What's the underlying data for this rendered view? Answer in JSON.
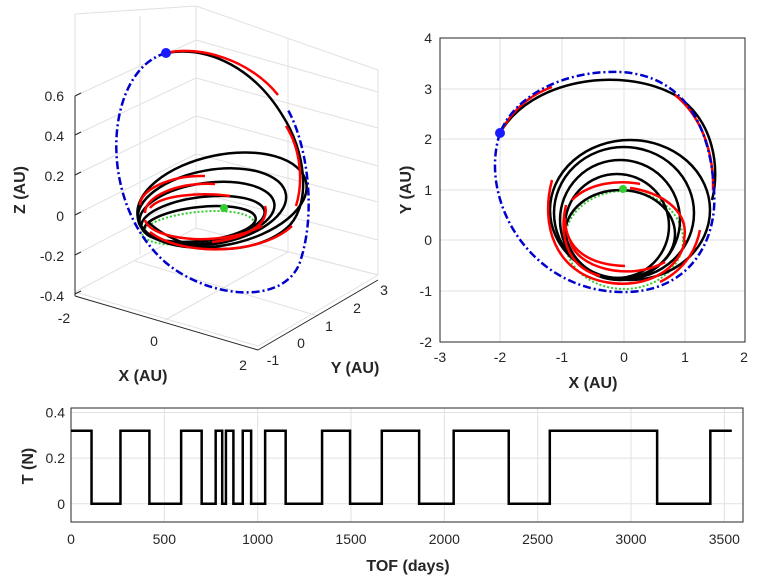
{
  "colors": {
    "transfer": "#000000",
    "thrust_arcs": "#ff0000",
    "departure_orbit": "#33cc33",
    "target_orbit": "#0000cc",
    "endpoint": "#1a1aff"
  },
  "chart_data": [
    {
      "type": "line3d",
      "name": "trajectory-3d",
      "xlabel": "X (AU)",
      "ylabel": "Y (AU)",
      "zlabel": "Z (AU)",
      "x_ticks": [
        "-2",
        "0",
        "2"
      ],
      "y_ticks": [
        "-1",
        "0",
        "1",
        "2",
        "3"
      ],
      "z_ticks": [
        "-0.4",
        "-0.2",
        "0",
        "0.2",
        "0.4",
        "0.6"
      ],
      "xlim": [
        -2,
        2
      ],
      "ylim": [
        -1,
        3.3
      ],
      "zlim": [
        -0.4,
        0.6
      ],
      "grid": true,
      "target_orbit": {
        "semi_major_axis_au": 2.25,
        "inclination_deg": 11,
        "style": "dash-dot"
      },
      "departure_orbit": {
        "radius_au": 1.0,
        "style": "dotted"
      },
      "endpoint": {
        "x": -2.0,
        "y": 2.1,
        "z": 0.58
      }
    },
    {
      "type": "line",
      "name": "trajectory-xy",
      "xlabel": "X (AU)",
      "ylabel": "Y (AU)",
      "x_ticks": [
        "-3",
        "-2",
        "-1",
        "0",
        "1",
        "2"
      ],
      "y_ticks": [
        "-2",
        "-1",
        "0",
        "1",
        "2",
        "3",
        "4"
      ],
      "xlim": [
        -3,
        2
      ],
      "ylim": [
        -2,
        4
      ],
      "grid": true,
      "target_orbit": {
        "center": [
          -0.45,
          1.2
        ],
        "rx": 1.95,
        "ry": 2.1
      },
      "endpoint": {
        "x": -2.05,
        "y": 2.12
      },
      "departure_point": {
        "x": 0.0,
        "y": 1.0
      }
    },
    {
      "type": "line",
      "name": "thrust-profile",
      "xlabel": "TOF (days)",
      "ylabel": "T (N)",
      "x_ticks": [
        "0",
        "500",
        "1000",
        "1500",
        "2000",
        "2500",
        "3000",
        "3500"
      ],
      "y_ticks": [
        "0",
        "0.2",
        "0.4"
      ],
      "xlim": [
        0,
        3600
      ],
      "ylim": [
        -0.08,
        0.42
      ],
      "grid": true,
      "thrust_level_N": 0.32,
      "on_intervals_days": [
        [
          0,
          110
        ],
        [
          265,
          420
        ],
        [
          590,
          700
        ],
        [
          775,
          810
        ],
        [
          830,
          870
        ],
        [
          920,
          965
        ],
        [
          1040,
          1150
        ],
        [
          1345,
          1495
        ],
        [
          1665,
          1865
        ],
        [
          2050,
          2345
        ],
        [
          2565,
          3140
        ],
        [
          3425,
          3540
        ]
      ],
      "end_day": 3540
    }
  ]
}
